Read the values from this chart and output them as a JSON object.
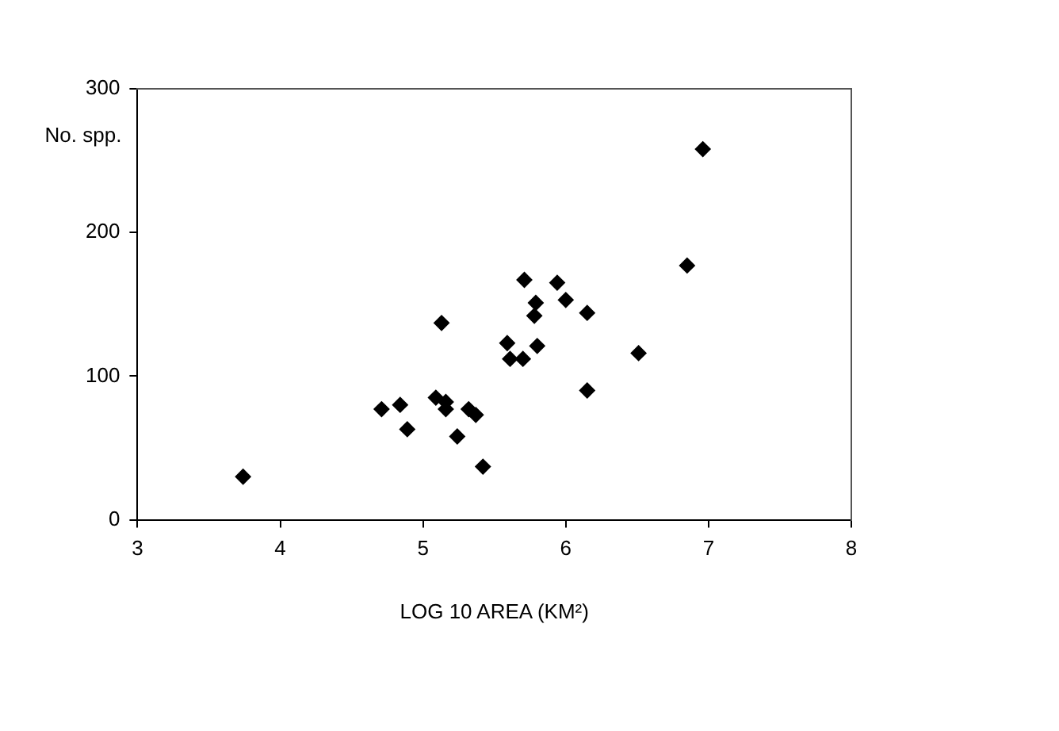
{
  "chart_data": {
    "type": "scatter",
    "xlabel": "LOG 10 AREA (KM²)",
    "ylabel": "No. spp.",
    "series": [
      {
        "color": "#000000",
        "x": [
          3.74,
          4.71,
          4.84,
          4.89,
          5.13,
          5.09,
          5.16,
          5.16,
          5.24,
          5.32,
          5.37,
          5.42,
          5.59,
          5.61,
          5.7,
          5.71,
          5.78,
          5.79,
          5.8,
          5.94,
          6.0,
          6.15,
          6.15,
          6.51,
          6.85,
          6.96
        ],
        "values": [
          30,
          77,
          80,
          63,
          137,
          85,
          82,
          77,
          58,
          77,
          73,
          37,
          123,
          112,
          112,
          167,
          142,
          151,
          121,
          165,
          153,
          144,
          90,
          116,
          177,
          258
        ]
      }
    ],
    "xlim": [
      3,
      8
    ],
    "xticks": [
      3,
      4,
      5,
      6,
      7,
      8
    ],
    "ylim": [
      0,
      300
    ],
    "yticks": [
      0,
      100,
      200,
      300
    ],
    "grid": false,
    "legend": false,
    "marker": "diamond"
  }
}
